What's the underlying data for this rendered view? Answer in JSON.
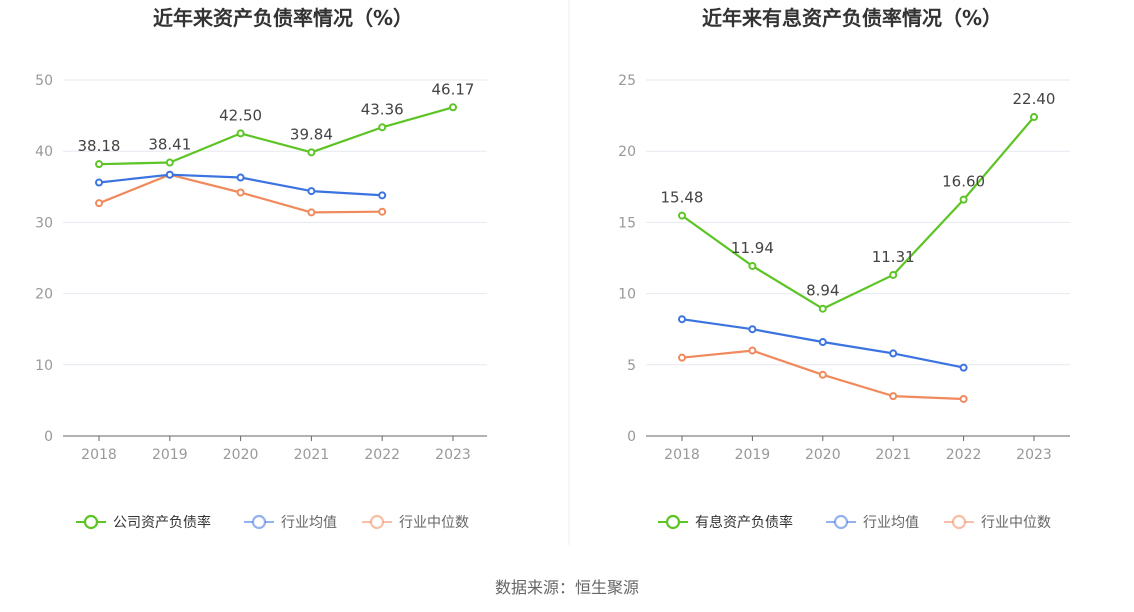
{
  "colors": {
    "primary": "#5cc424",
    "average": "#3b73e0",
    "median": "#f08a5d",
    "grid": "#e6e9f0",
    "axis": "#666666"
  },
  "source": "数据来源：恒生聚源",
  "chart_data": [
    {
      "type": "line",
      "title": "近年来资产负债率情况（%）",
      "categories": [
        "2018",
        "2019",
        "2020",
        "2021",
        "2022",
        "2023"
      ],
      "ylim": [
        0,
        50
      ],
      "yticks": [
        0,
        10,
        20,
        30,
        40,
        50
      ],
      "series": [
        {
          "name": "公司资产负债率",
          "values": [
            38.18,
            38.41,
            42.5,
            39.84,
            43.36,
            46.17
          ],
          "labels": [
            "38.18",
            "38.41",
            "42.50",
            "39.84",
            "43.36",
            "46.17"
          ]
        },
        {
          "name": "行业均值",
          "values": [
            35.6,
            36.7,
            36.3,
            34.4,
            33.8,
            null
          ]
        },
        {
          "name": "行业中位数",
          "values": [
            32.7,
            36.7,
            34.2,
            31.4,
            31.5,
            null
          ]
        }
      ],
      "legend": [
        "公司资产负债率",
        "行业均值",
        "行业中位数"
      ]
    },
    {
      "type": "line",
      "title": "近年来有息资产负债率情况（%）",
      "categories": [
        "2018",
        "2019",
        "2020",
        "2021",
        "2022",
        "2023"
      ],
      "ylim": [
        0,
        25
      ],
      "yticks": [
        0,
        5,
        10,
        15,
        20,
        25
      ],
      "series": [
        {
          "name": "有息资产负债率",
          "values": [
            15.48,
            11.94,
            8.94,
            11.31,
            16.6,
            22.4
          ],
          "labels": [
            "15.48",
            "11.94",
            "8.94",
            "11.31",
            "16.60",
            "22.40"
          ]
        },
        {
          "name": "行业均值",
          "values": [
            8.2,
            7.5,
            6.6,
            5.8,
            4.8,
            null
          ]
        },
        {
          "name": "行业中位数",
          "values": [
            5.5,
            6.0,
            4.3,
            2.8,
            2.6,
            null
          ]
        }
      ],
      "legend": [
        "有息资产负债率",
        "行业均值",
        "行业中位数"
      ]
    }
  ]
}
